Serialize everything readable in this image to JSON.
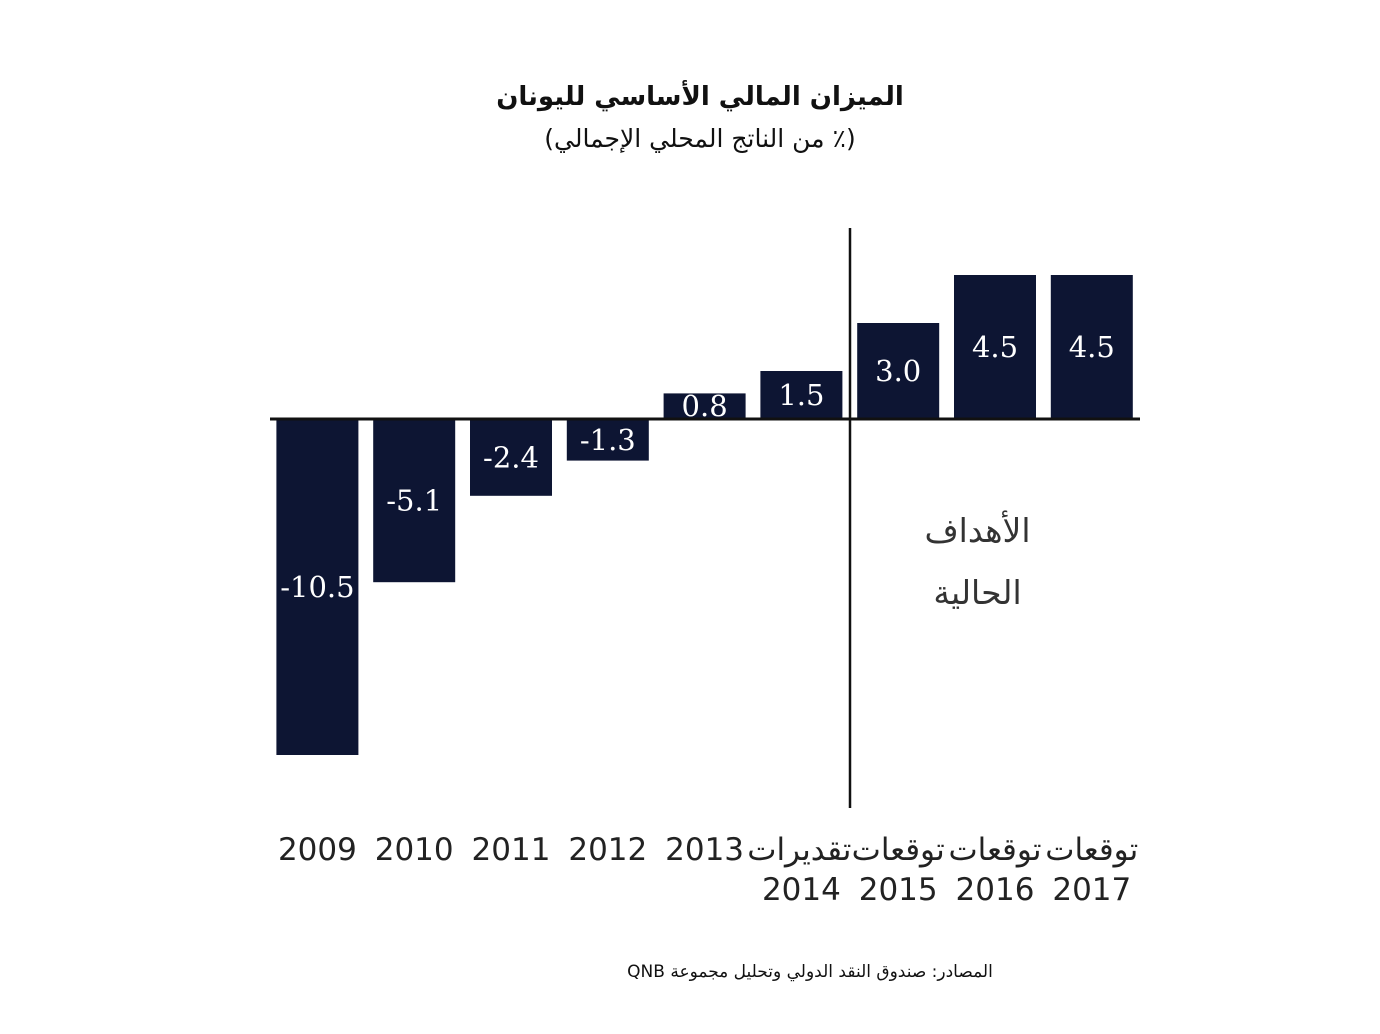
{
  "chart_data": {
    "type": "bar",
    "title": "الميزان المالي الأساسي لليونان",
    "subtitle": "(٪ من الناتج المحلي الإجمالي)",
    "categories": [
      "2009",
      "2010",
      "2011",
      "2012",
      "2013",
      "تقديرات 2014",
      "توقعات 2015",
      "توقعات 2016",
      "توقعات 2017"
    ],
    "values": [
      -10.5,
      -5.1,
      -2.4,
      -1.3,
      0.8,
      1.5,
      3.0,
      4.5,
      4.5
    ],
    "value_labels": [
      "-10.5",
      "-5.1",
      "-2.4",
      "-1.3",
      "0.8",
      "1.5",
      "3.0",
      "4.5",
      "4.5"
    ],
    "color": "#0d1533",
    "annotation": "الأهداف الحالية",
    "source": "المصادر: صندوق النقد الدولي وتحليل مجموعة QNB"
  }
}
